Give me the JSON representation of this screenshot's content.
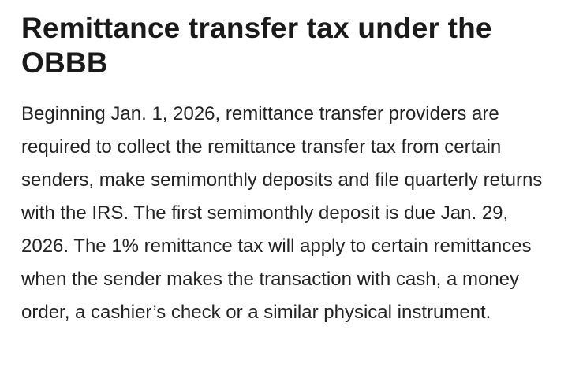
{
  "article": {
    "title": "Remittance transfer tax under the OBBB",
    "body": "Beginning Jan. 1, 2026, remittance transfer providers are required to collect the remittance transfer tax from certain senders, make semimonthly deposits and file quarterly returns with the IRS. The first semimonthly deposit is due Jan. 29, 2026. The 1% remittance tax will apply to certain remittances when the sender makes the transaction with cash, a money order, a cashier’s check or a similar physical instrument."
  }
}
